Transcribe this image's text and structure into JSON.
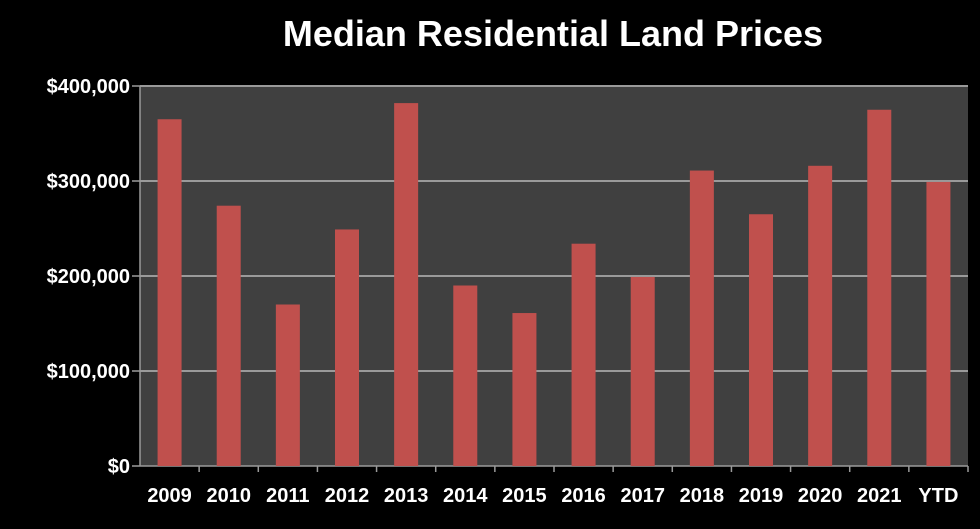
{
  "chart_data": {
    "type": "bar",
    "title": "Median Residential Land Prices",
    "xlabel": "",
    "ylabel": "",
    "categories": [
      "2009",
      "2010",
      "2011",
      "2012",
      "2013",
      "2014",
      "2015",
      "2016",
      "2017",
      "2018",
      "2019",
      "2020",
      "2021",
      "YTD"
    ],
    "values": [
      365000,
      274000,
      170000,
      249000,
      382000,
      190000,
      161000,
      234000,
      199000,
      311000,
      265000,
      316000,
      375000,
      299000
    ],
    "ylim": [
      0,
      400000
    ],
    "yticks": [
      0,
      100000,
      200000,
      300000,
      400000
    ],
    "ytick_labels": [
      "$0",
      "$100,000",
      "$200,000",
      "$300,000",
      "$400,000"
    ],
    "grid": true,
    "legend": "none",
    "colors": {
      "background": "#000000",
      "plot_area": "#404040",
      "bar": "#c0504d",
      "gridline": "#9a9a9a",
      "text": "#ffffff"
    }
  }
}
